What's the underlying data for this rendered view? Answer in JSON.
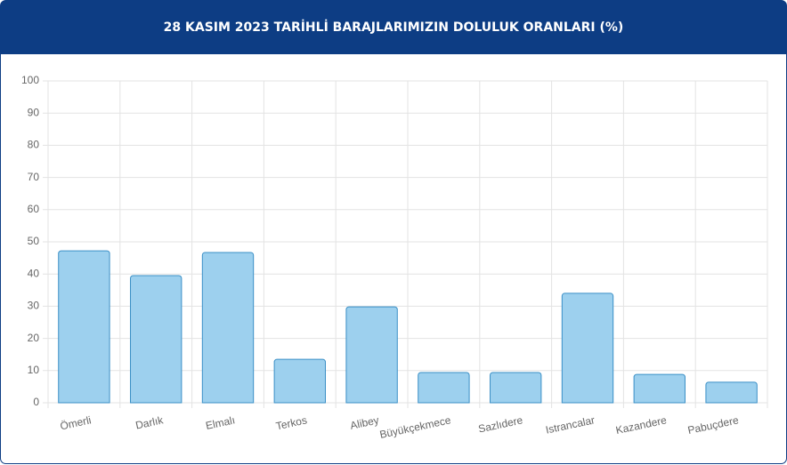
{
  "chart_data": {
    "type": "bar",
    "title": "28 KASIM 2023 TARİHLİ BARAJLARIMIZIN DOLULUK ORANLARI (%)",
    "categories": [
      "Ömerli",
      "Darlık",
      "Elmalı",
      "Terkos",
      "Alibey",
      "Büyükçekmece",
      "Sazlıdere",
      "Istrancalar",
      "Kazandere",
      "Pabuçdere"
    ],
    "values": [
      47.2,
      39.5,
      46.7,
      13.5,
      29.8,
      9.4,
      9.4,
      34.0,
      8.8,
      6.4
    ],
    "color": "#9dd0ee",
    "border_color": "#3a8fc6",
    "ylim": [
      0,
      100
    ],
    "yticks": [
      0,
      10,
      20,
      30,
      40,
      50,
      60,
      70,
      80,
      90,
      100
    ],
    "grid": true
  }
}
